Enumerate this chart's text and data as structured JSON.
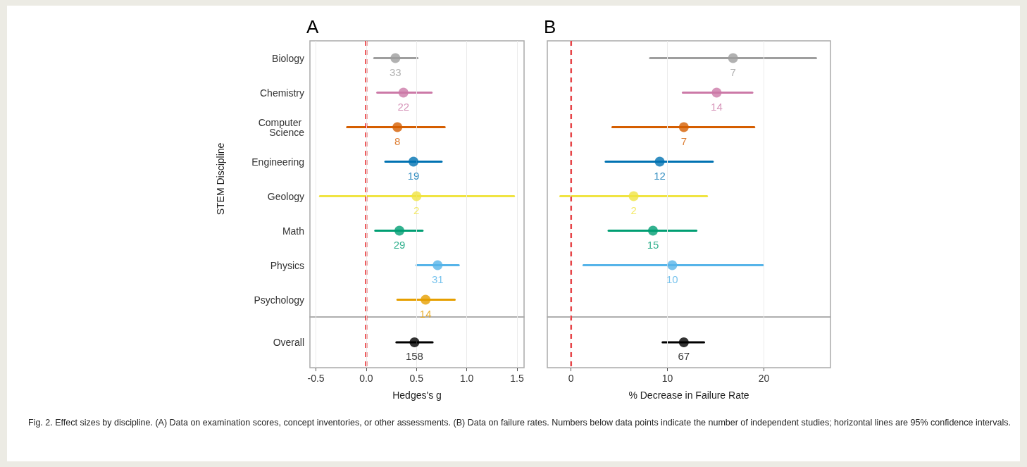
{
  "chart_data": [
    {
      "type": "scatter",
      "orientation": "horizontal",
      "title": "A",
      "xlabel": "Hedges's g",
      "ylabel": "STEM Discipline",
      "categories": [
        "Biology",
        "Chemistry",
        "Computer Science",
        "Engineering",
        "Geology",
        "Math",
        "Physics",
        "Psychology",
        "Overall"
      ],
      "values": [
        0.29,
        0.37,
        0.31,
        0.47,
        0.5,
        0.33,
        0.71,
        0.59,
        0.48
      ],
      "errors": [
        [
          0.08,
          0.51
        ],
        [
          0.11,
          0.65
        ],
        [
          -0.19,
          0.78
        ],
        [
          0.19,
          0.75
        ],
        [
          -0.46,
          1.47
        ],
        [
          0.09,
          0.56
        ],
        [
          0.5,
          0.92
        ],
        [
          0.31,
          0.88
        ],
        [
          0.3,
          0.66
        ]
      ],
      "colors": [
        "#9e9e9e",
        "#cc79a7",
        "#d55e00",
        "#0072b2",
        "#f0e442",
        "#009e73",
        "#56b4e9",
        "#e69f00",
        "#000000"
      ],
      "xlim": [
        -0.56,
        1.57
      ],
      "xticks": [
        -0.5,
        {
          "value": 0,
          "label": "0.0"
        },
        0.5,
        {
          "value": 1,
          "label": "1.0"
        },
        1.5
      ],
      "grid": "x",
      "marker": "circle",
      "ref_lines": [
        {
          "axis": "x",
          "value": 0,
          "color": "#e8262a",
          "line_style": "dashed"
        }
      ],
      "annotations": [
        {
          "text": "33",
          "x": 0.29,
          "y": "Biology"
        },
        {
          "text": "22",
          "x": 0.37,
          "y": "Chemistry"
        },
        {
          "text": "8",
          "x": 0.31,
          "y": "Computer Science"
        },
        {
          "text": "19",
          "x": 0.47,
          "y": "Engineering"
        },
        {
          "text": "2",
          "x": 0.5,
          "y": "Geology"
        },
        {
          "text": "29",
          "x": 0.33,
          "y": "Math"
        },
        {
          "text": "31",
          "x": 0.71,
          "y": "Physics"
        },
        {
          "text": "14",
          "x": 0.59,
          "y": "Psychology"
        },
        {
          "text": "158",
          "x": 0.48,
          "y": "Overall"
        }
      ]
    },
    {
      "type": "scatter",
      "orientation": "horizontal",
      "title": "B",
      "xlabel": "% Decrease in Failure Rate",
      "categories": [
        "Biology",
        "Chemistry",
        "Computer Science",
        "Engineering",
        "Geology",
        "Math",
        "Physics",
        "Psychology",
        "Overall"
      ],
      "values": [
        16.8,
        15.1,
        11.7,
        9.2,
        6.5,
        8.5,
        10.5,
        null,
        11.7
      ],
      "errors": [
        [
          8.2,
          25.4
        ],
        [
          11.6,
          18.8
        ],
        [
          4.3,
          19.0
        ],
        [
          3.6,
          14.7
        ],
        [
          -1.1,
          14.1
        ],
        [
          3.9,
          13.0
        ],
        [
          1.3,
          19.9
        ],
        null,
        [
          9.5,
          13.8
        ]
      ],
      "colors": [
        "#9e9e9e",
        "#cc79a7",
        "#d55e00",
        "#0072b2",
        "#f0e442",
        "#009e73",
        "#56b4e9",
        null,
        "#000000"
      ],
      "xlim": [
        -2.45,
        26.9
      ],
      "xticks": [
        0,
        10,
        20
      ],
      "grid": "x",
      "marker": "circle",
      "tick_labels": "x",
      "ref_lines": [
        {
          "axis": "x",
          "value": 0,
          "color": "#e8262a",
          "line_style": "dashed"
        }
      ],
      "annotations": [
        {
          "text": "7",
          "x": 16.8,
          "y": "Biology"
        },
        {
          "text": "14",
          "x": 15.1,
          "y": "Chemistry"
        },
        {
          "text": "7",
          "x": 11.7,
          "y": "Computer Science"
        },
        {
          "text": "12",
          "x": 9.2,
          "y": "Engineering"
        },
        {
          "text": "2",
          "x": 6.5,
          "y": "Geology"
        },
        {
          "text": "15",
          "x": 8.5,
          "y": "Math"
        },
        {
          "text": "10",
          "x": 10.5,
          "y": "Physics"
        },
        {
          "text": "67",
          "x": 11.7,
          "y": "Overall"
        },
        "Fig. 2.   Effect sizes by discipline. (A) Data on examination scores, concept inventories, or other assessments. (B) Data on failure rates. Numbers below data points indicate the number of independent studies; horizontal lines are 95% confidence intervals."
      ]
    }
  ]
}
